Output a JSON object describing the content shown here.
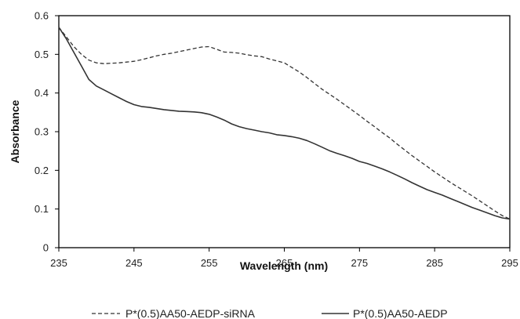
{
  "chart_data": {
    "type": "line",
    "title": "",
    "xlabel": "Wavelength (nm)",
    "ylabel": "Absorbance",
    "xlim": [
      235,
      295
    ],
    "ylim": [
      0,
      0.6
    ],
    "xticks": [
      235,
      245,
      255,
      265,
      275,
      285,
      295
    ],
    "yticks": [
      0,
      0.1,
      0.2,
      0.3,
      0.4,
      0.5,
      0.6
    ],
    "xtick_labels": [
      "235",
      "245",
      "255",
      "265",
      "275",
      "285",
      "295"
    ],
    "ytick_labels": [
      "0",
      "0.1",
      "0.2",
      "0.3",
      "0.4",
      "0.5",
      "0.6"
    ],
    "grid": false,
    "legend_position": "bottom",
    "series": [
      {
        "name": "P*(0.5)AA50-AEDP-siRNA",
        "style": "dashed",
        "color": "#333333",
        "x": [
          235,
          236,
          237,
          238,
          239,
          240,
          241,
          242,
          243,
          244,
          245,
          246,
          247,
          248,
          249,
          250,
          251,
          252,
          253,
          254,
          255,
          256,
          257,
          258,
          259,
          260,
          261,
          262,
          263,
          264,
          265,
          266,
          267,
          268,
          269,
          270,
          271,
          272,
          273,
          274,
          275,
          276,
          277,
          278,
          279,
          280,
          281,
          282,
          283,
          284,
          285,
          286,
          287,
          288,
          289,
          290,
          291,
          292,
          293,
          294,
          295
        ],
        "y": [
          0.57,
          0.545,
          0.52,
          0.5,
          0.485,
          0.478,
          0.476,
          0.477,
          0.478,
          0.48,
          0.482,
          0.486,
          0.491,
          0.496,
          0.5,
          0.503,
          0.507,
          0.511,
          0.515,
          0.519,
          0.52,
          0.513,
          0.506,
          0.505,
          0.503,
          0.499,
          0.496,
          0.494,
          0.488,
          0.483,
          0.478,
          0.466,
          0.454,
          0.44,
          0.425,
          0.41,
          0.397,
          0.384,
          0.37,
          0.356,
          0.342,
          0.327,
          0.313,
          0.298,
          0.284,
          0.268,
          0.253,
          0.238,
          0.224,
          0.21,
          0.196,
          0.183,
          0.17,
          0.158,
          0.146,
          0.134,
          0.121,
          0.108,
          0.095,
          0.083,
          0.074
        ]
      },
      {
        "name": "P*(0.5)AA50-AEDP",
        "style": "solid",
        "color": "#333333",
        "x": [
          235,
          236,
          237,
          238,
          239,
          240,
          241,
          242,
          243,
          244,
          245,
          246,
          247,
          248,
          249,
          250,
          251,
          252,
          253,
          254,
          255,
          256,
          257,
          258,
          259,
          260,
          261,
          262,
          263,
          264,
          265,
          266,
          267,
          268,
          269,
          270,
          271,
          272,
          273,
          274,
          275,
          276,
          277,
          278,
          279,
          280,
          281,
          282,
          283,
          284,
          285,
          286,
          287,
          288,
          289,
          290,
          291,
          292,
          293,
          294,
          295
        ],
        "y": [
          0.57,
          0.54,
          0.505,
          0.47,
          0.435,
          0.418,
          0.408,
          0.398,
          0.388,
          0.378,
          0.37,
          0.365,
          0.363,
          0.36,
          0.357,
          0.355,
          0.353,
          0.352,
          0.351,
          0.349,
          0.345,
          0.338,
          0.33,
          0.32,
          0.313,
          0.308,
          0.304,
          0.3,
          0.297,
          0.292,
          0.29,
          0.287,
          0.283,
          0.277,
          0.269,
          0.26,
          0.251,
          0.244,
          0.238,
          0.231,
          0.223,
          0.218,
          0.211,
          0.204,
          0.196,
          0.187,
          0.178,
          0.168,
          0.159,
          0.15,
          0.143,
          0.136,
          0.128,
          0.12,
          0.112,
          0.104,
          0.097,
          0.09,
          0.083,
          0.077,
          0.074
        ]
      }
    ]
  }
}
